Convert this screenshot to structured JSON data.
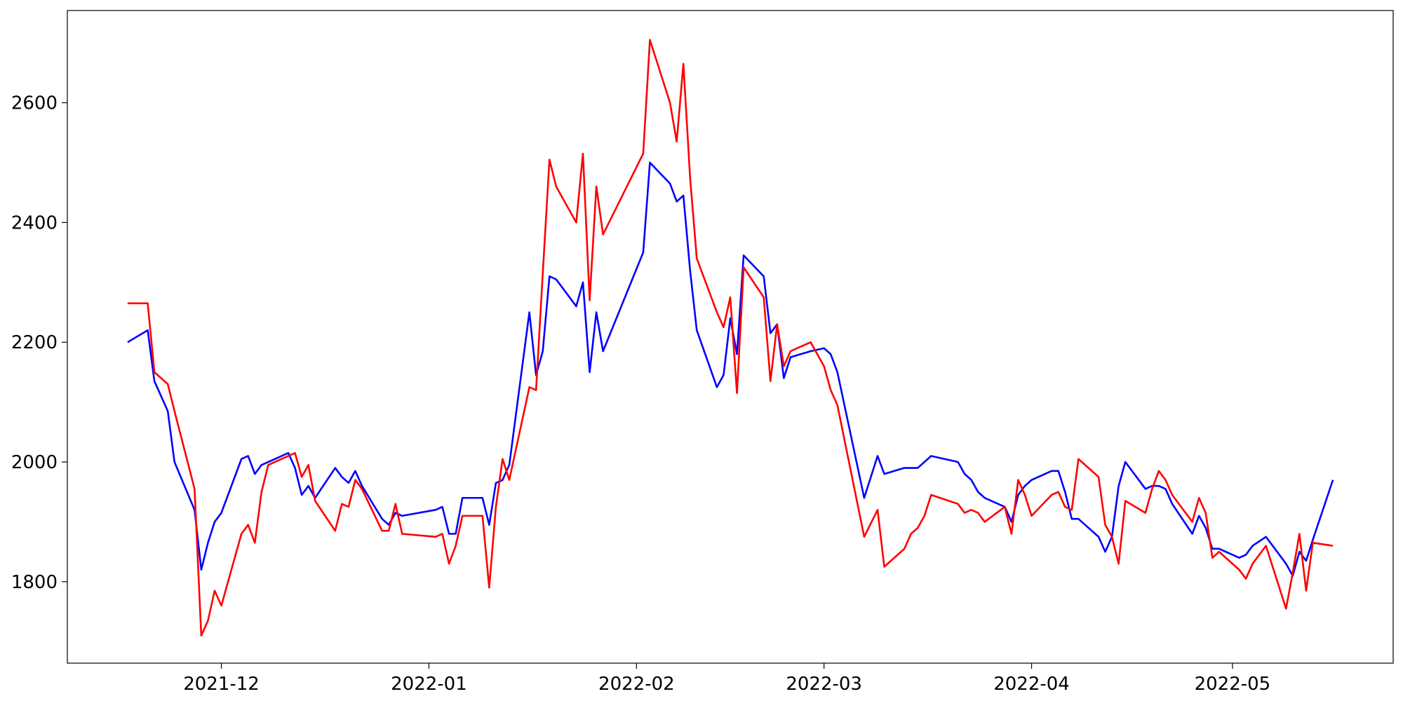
{
  "chart_data": {
    "type": "line",
    "x": [
      -14,
      -11,
      -10,
      -8,
      -7,
      -4,
      -3,
      -2,
      -1,
      0,
      3,
      4,
      5,
      6,
      7,
      10,
      11,
      12,
      13,
      14,
      17,
      18,
      19,
      20,
      21,
      24,
      25,
      26,
      27,
      32,
      33,
      34,
      35,
      36,
      39,
      40,
      41,
      42,
      43,
      46,
      47,
      48,
      49,
      50,
      53,
      54,
      55,
      56,
      57,
      63,
      64,
      67,
      68,
      69,
      70,
      71,
      74,
      75,
      76,
      77,
      78,
      81,
      82,
      83,
      84,
      85,
      88,
      90,
      91,
      92,
      96,
      98,
      99,
      102,
      103,
      104,
      105,
      106,
      110,
      111,
      112,
      113,
      114,
      117,
      118,
      119,
      120,
      121,
      124,
      125,
      126,
      127,
      128,
      131,
      132,
      133,
      134,
      135,
      138,
      139,
      140,
      141,
      142,
      145,
      146,
      147,
      148,
      149,
      152,
      153,
      154,
      156,
      159,
      160,
      161,
      162,
      163,
      166
    ],
    "series": [
      {
        "color": "#0000ff",
        "values": [
          2200,
          2220,
          2135,
          2085,
          2000,
          1920,
          1820,
          1865,
          1900,
          1915,
          2005,
          2010,
          1980,
          1995,
          2000,
          2015,
          1990,
          1945,
          1960,
          1940,
          1990,
          1975,
          1965,
          1985,
          1960,
          1905,
          1895,
          1915,
          1910,
          1920,
          1925,
          1880,
          1880,
          1940,
          1940,
          1895,
          1965,
          1970,
          1995,
          2250,
          2145,
          2185,
          2310,
          2305,
          2260,
          2300,
          2150,
          2250,
          2185,
          2350,
          2500,
          2465,
          2435,
          2445,
          2320,
          2220,
          2125,
          2145,
          2240,
          2180,
          2345,
          2310,
          2215,
          2230,
          2140,
          2175,
          2185,
          2190,
          2180,
          2150,
          1940,
          2010,
          1980,
          1990,
          1990,
          1990,
          2000,
          2010,
          2000,
          1980,
          1970,
          1950,
          1940,
          1925,
          1900,
          1945,
          1960,
          1970,
          1985,
          1985,
          1950,
          1905,
          1905,
          1875,
          1850,
          1875,
          1960,
          2000,
          1955,
          1960,
          1960,
          1955,
          1930,
          1880,
          1910,
          1890,
          1855,
          1855,
          1840,
          1845,
          1860,
          1875,
          1830,
          1810,
          1850,
          1835,
          1870,
          1970
        ]
      },
      {
        "color": "#ff0000",
        "values": [
          2265,
          2265,
          2150,
          2130,
          2085,
          1955,
          1710,
          1735,
          1785,
          1760,
          1880,
          1895,
          1865,
          1950,
          1995,
          2010,
          2015,
          1975,
          1995,
          1935,
          1885,
          1930,
          1925,
          1970,
          1955,
          1885,
          1885,
          1930,
          1880,
          1875,
          1880,
          1830,
          1860,
          1910,
          1910,
          1790,
          1925,
          2005,
          1970,
          2125,
          2120,
          2315,
          2505,
          2460,
          2400,
          2515,
          2270,
          2460,
          2380,
          2515,
          2705,
          2600,
          2535,
          2665,
          2475,
          2340,
          2250,
          2225,
          2275,
          2115,
          2325,
          2275,
          2135,
          2230,
          2160,
          2185,
          2200,
          2160,
          2120,
          2095,
          1875,
          1920,
          1825,
          1855,
          1880,
          1890,
          1910,
          1945,
          1930,
          1915,
          1920,
          1915,
          1900,
          1925,
          1880,
          1970,
          1945,
          1910,
          1945,
          1950,
          1925,
          1920,
          2005,
          1975,
          1895,
          1875,
          1830,
          1935,
          1915,
          1955,
          1985,
          1970,
          1945,
          1900,
          1940,
          1915,
          1840,
          1850,
          1820,
          1805,
          1830,
          1860,
          1755,
          1815,
          1880,
          1785,
          1865,
          1860
        ]
      }
    ],
    "xlim": [
      -23,
      175
    ],
    "xticks": [
      {
        "value": 0,
        "label": "2021-12"
      },
      {
        "value": 31,
        "label": "2022-01"
      },
      {
        "value": 62,
        "label": "2022-02"
      },
      {
        "value": 90,
        "label": "2022-03"
      },
      {
        "value": 121,
        "label": "2022-04"
      },
      {
        "value": 151,
        "label": "2022-05"
      }
    ],
    "ylim": [
      1664,
      2754
    ],
    "yticks": [
      1800,
      2000,
      2200,
      2400,
      2600
    ]
  }
}
